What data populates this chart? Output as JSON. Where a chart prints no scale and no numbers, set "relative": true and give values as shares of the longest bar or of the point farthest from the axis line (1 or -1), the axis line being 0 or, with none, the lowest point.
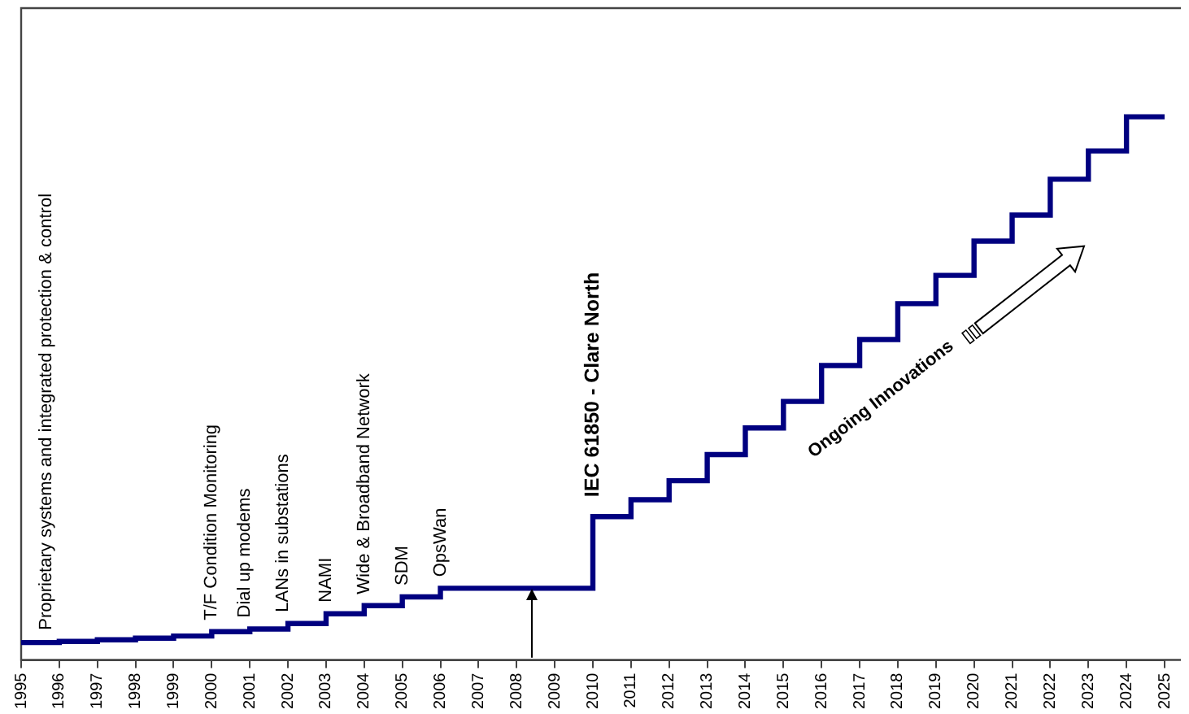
{
  "chart_data": {
    "type": "step",
    "relative": true,
    "x": [
      1995,
      1996,
      1997,
      1998,
      1999,
      2000,
      2001,
      2002,
      2003,
      2004,
      2005,
      2006,
      2007,
      2008,
      2009,
      2010,
      2011,
      2012,
      2013,
      2014,
      2015,
      2016,
      2017,
      2018,
      2019,
      2020,
      2021,
      2022,
      2023,
      2024,
      2025
    ],
    "series": [
      {
        "color": "#000080",
        "values": [
          0.032,
          0.034,
          0.037,
          0.04,
          0.044,
          0.052,
          0.057,
          0.067,
          0.085,
          0.1,
          0.116,
          0.132,
          0.132,
          0.132,
          0.132,
          0.264,
          0.295,
          0.33,
          0.378,
          0.427,
          0.476,
          0.542,
          0.59,
          0.656,
          0.708,
          0.771,
          0.819,
          0.885,
          0.937,
          1,
          1
        ]
      }
    ],
    "xlim": [
      1995,
      2025
    ],
    "xticks": [
      1995,
      1996,
      1997,
      1998,
      1999,
      2000,
      2001,
      2002,
      2003,
      2004,
      2005,
      2006,
      2007,
      2008,
      2009,
      2010,
      2011,
      2012,
      2013,
      2014,
      2015,
      2016,
      2017,
      2018,
      2019,
      2020,
      2021,
      2022,
      2023,
      2024,
      2025
    ],
    "marker": "none",
    "line_style": "solid",
    "grid": false,
    "legend": false,
    "annotations": [
      {
        "text": "Proprietary systems and integrated protection & control",
        "x": 1996,
        "y": 0.034
      },
      {
        "text": "T/F Condition Monitoring",
        "x": 2000,
        "y": 0.052
      },
      {
        "text": "Dial up modems",
        "x": 2001,
        "y": 0.057
      },
      {
        "text": "LANs in substations",
        "x": 2002,
        "y": 0.067
      },
      {
        "text": "NAMI",
        "x": 2003,
        "y": 0.085
      },
      {
        "text": "Wide & Broadband Network",
        "x": 2004,
        "y": 0.1
      },
      {
        "text": "SDM",
        "x": 2005,
        "y": 0.116
      },
      {
        "text": "OpsWan",
        "x": 2006,
        "y": 0.132
      },
      {
        "text": "IEC 61850 - Clare North",
        "x": 2010,
        "y": 0.264
      },
      "Ongoing Innovations"
    ]
  }
}
